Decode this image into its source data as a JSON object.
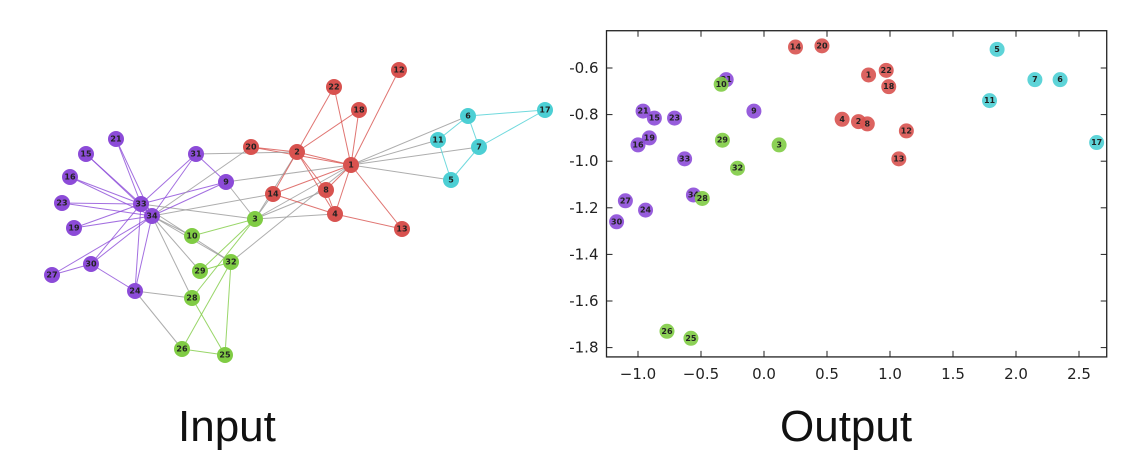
{
  "captions": {
    "input": "Input",
    "output": "Output"
  },
  "colors": {
    "red": "#d8524f",
    "purple": "#8c4bd8",
    "green": "#80cc44",
    "cyan": "#4ccfd4",
    "cross_edge": "#999999"
  },
  "communities": {
    "red": [
      1,
      2,
      4,
      8,
      12,
      13,
      14,
      18,
      20,
      22
    ],
    "cyan": [
      5,
      6,
      7,
      11,
      17
    ],
    "green": [
      3,
      10,
      25,
      26,
      28,
      29,
      32
    ],
    "purple": [
      9,
      15,
      16,
      19,
      21,
      23,
      24,
      27,
      30,
      31,
      33,
      34
    ]
  },
  "graph": {
    "nodes": [
      "1",
      "2",
      "3",
      "4",
      "5",
      "6",
      "7",
      "8",
      "9",
      "10",
      "11",
      "12",
      "13",
      "14",
      "15",
      "16",
      "17",
      "18",
      "19",
      "20",
      "21",
      "22",
      "23",
      "24",
      "25",
      "26",
      "27",
      "28",
      "29",
      "30",
      "31",
      "32",
      "33",
      "34"
    ],
    "edges": [
      [
        2,
        1
      ],
      [
        3,
        1
      ],
      [
        3,
        2
      ],
      [
        4,
        1
      ],
      [
        4,
        2
      ],
      [
        4,
        3
      ],
      [
        5,
        1
      ],
      [
        6,
        1
      ],
      [
        7,
        1
      ],
      [
        7,
        5
      ],
      [
        7,
        6
      ],
      [
        8,
        1
      ],
      [
        8,
        2
      ],
      [
        8,
        3
      ],
      [
        8,
        4
      ],
      [
        9,
        1
      ],
      [
        9,
        3
      ],
      [
        10,
        3
      ],
      [
        11,
        1
      ],
      [
        11,
        5
      ],
      [
        11,
        6
      ],
      [
        12,
        1
      ],
      [
        13,
        1
      ],
      [
        13,
        4
      ],
      [
        14,
        1
      ],
      [
        14,
        2
      ],
      [
        14,
        3
      ],
      [
        14,
        4
      ],
      [
        17,
        6
      ],
      [
        17,
        7
      ],
      [
        18,
        1
      ],
      [
        18,
        2
      ],
      [
        20,
        1
      ],
      [
        20,
        2
      ],
      [
        22,
        1
      ],
      [
        22,
        2
      ],
      [
        26,
        24
      ],
      [
        26,
        25
      ],
      [
        28,
        3
      ],
      [
        28,
        24
      ],
      [
        28,
        25
      ],
      [
        29,
        3
      ],
      [
        30,
        24
      ],
      [
        30,
        27
      ],
      [
        31,
        2
      ],
      [
        31,
        9
      ],
      [
        32,
        1
      ],
      [
        32,
        25
      ],
      [
        32,
        26
      ],
      [
        32,
        29
      ],
      [
        33,
        3
      ],
      [
        33,
        9
      ],
      [
        33,
        15
      ],
      [
        33,
        16
      ],
      [
        33,
        19
      ],
      [
        33,
        21
      ],
      [
        33,
        23
      ],
      [
        33,
        24
      ],
      [
        33,
        30
      ],
      [
        33,
        31
      ],
      [
        33,
        32
      ],
      [
        34,
        9
      ],
      [
        34,
        10
      ],
      [
        34,
        14
      ],
      [
        34,
        15
      ],
      [
        34,
        16
      ],
      [
        34,
        19
      ],
      [
        34,
        20
      ],
      [
        34,
        21
      ],
      [
        34,
        23
      ],
      [
        34,
        24
      ],
      [
        34,
        27
      ],
      [
        34,
        28
      ],
      [
        34,
        29
      ],
      [
        34,
        30
      ],
      [
        34,
        31
      ],
      [
        34,
        32
      ],
      [
        34,
        33
      ]
    ]
  },
  "chart_data": {
    "type": "scatter",
    "title": "",
    "xlabel": "",
    "ylabel": "",
    "xlim": [
      -1.25,
      2.72
    ],
    "ylim": [
      -1.84,
      -0.44
    ],
    "grid": false,
    "x_ticks": [
      -1.0,
      -0.5,
      0.0,
      0.5,
      1.0,
      1.5,
      2.0,
      2.5
    ],
    "x_tick_labels": [
      "−1.0",
      "−0.5",
      "0.0",
      "0.5",
      "1.0",
      "1.5",
      "2.0",
      "2.5"
    ],
    "y_ticks": [
      -0.6,
      -0.8,
      -1.0,
      -1.2,
      -1.4,
      -1.6,
      -1.8
    ],
    "y_tick_labels": [
      "-0.6",
      "-0.8",
      "-1.0",
      "-1.2",
      "-1.4",
      "-1.6",
      "-1.8"
    ],
    "points": [
      {
        "label": "14",
        "x": 0.25,
        "y": -0.51,
        "group": "red"
      },
      {
        "label": "20",
        "x": 0.46,
        "y": -0.505,
        "group": "red"
      },
      {
        "label": "1",
        "x": 0.83,
        "y": -0.63,
        "group": "red"
      },
      {
        "label": "22",
        "x": 0.97,
        "y": -0.61,
        "group": "red"
      },
      {
        "label": "18",
        "x": 0.99,
        "y": -0.68,
        "group": "red"
      },
      {
        "label": "4",
        "x": 0.62,
        "y": -0.82,
        "group": "red"
      },
      {
        "label": "2",
        "x": 0.75,
        "y": -0.83,
        "group": "red"
      },
      {
        "label": "8",
        "x": 0.82,
        "y": -0.84,
        "group": "red"
      },
      {
        "label": "12",
        "x": 1.13,
        "y": -0.87,
        "group": "red"
      },
      {
        "label": "13",
        "x": 1.07,
        "y": -0.99,
        "group": "red"
      },
      {
        "label": "5",
        "x": 1.85,
        "y": -0.52,
        "group": "cyan"
      },
      {
        "label": "7",
        "x": 2.15,
        "y": -0.65,
        "group": "cyan"
      },
      {
        "label": "6",
        "x": 2.35,
        "y": -0.65,
        "group": "cyan"
      },
      {
        "label": "11",
        "x": 1.79,
        "y": -0.74,
        "group": "cyan"
      },
      {
        "label": "17",
        "x": 2.64,
        "y": -0.92,
        "group": "cyan"
      },
      {
        "label": "31",
        "x": -0.3,
        "y": -0.65,
        "group": "purple"
      },
      {
        "label": "10",
        "x": -0.34,
        "y": -0.67,
        "group": "green"
      },
      {
        "label": "9",
        "x": -0.08,
        "y": -0.785,
        "group": "purple"
      },
      {
        "label": "29",
        "x": -0.33,
        "y": -0.91,
        "group": "green"
      },
      {
        "label": "3",
        "x": 0.12,
        "y": -0.93,
        "group": "green"
      },
      {
        "label": "32",
        "x": -0.21,
        "y": -1.03,
        "group": "green"
      },
      {
        "label": "21",
        "x": -0.96,
        "y": -0.785,
        "group": "purple"
      },
      {
        "label": "15",
        "x": -0.87,
        "y": -0.815,
        "group": "purple"
      },
      {
        "label": "23",
        "x": -0.71,
        "y": -0.815,
        "group": "purple"
      },
      {
        "label": "19",
        "x": -0.91,
        "y": -0.9,
        "group": "purple"
      },
      {
        "label": "16",
        "x": -1.0,
        "y": -0.93,
        "group": "purple"
      },
      {
        "label": "33",
        "x": -0.63,
        "y": -0.99,
        "group": "purple"
      },
      {
        "label": "34",
        "x": -0.56,
        "y": -1.145,
        "group": "purple"
      },
      {
        "label": "28",
        "x": -0.49,
        "y": -1.16,
        "group": "green"
      },
      {
        "label": "27",
        "x": -1.1,
        "y": -1.17,
        "group": "purple"
      },
      {
        "label": "24",
        "x": -0.94,
        "y": -1.21,
        "group": "purple"
      },
      {
        "label": "30",
        "x": -1.17,
        "y": -1.26,
        "group": "purple"
      },
      {
        "label": "26",
        "x": -0.77,
        "y": -1.73,
        "group": "green"
      },
      {
        "label": "25",
        "x": -0.58,
        "y": -1.76,
        "group": "green"
      }
    ]
  }
}
